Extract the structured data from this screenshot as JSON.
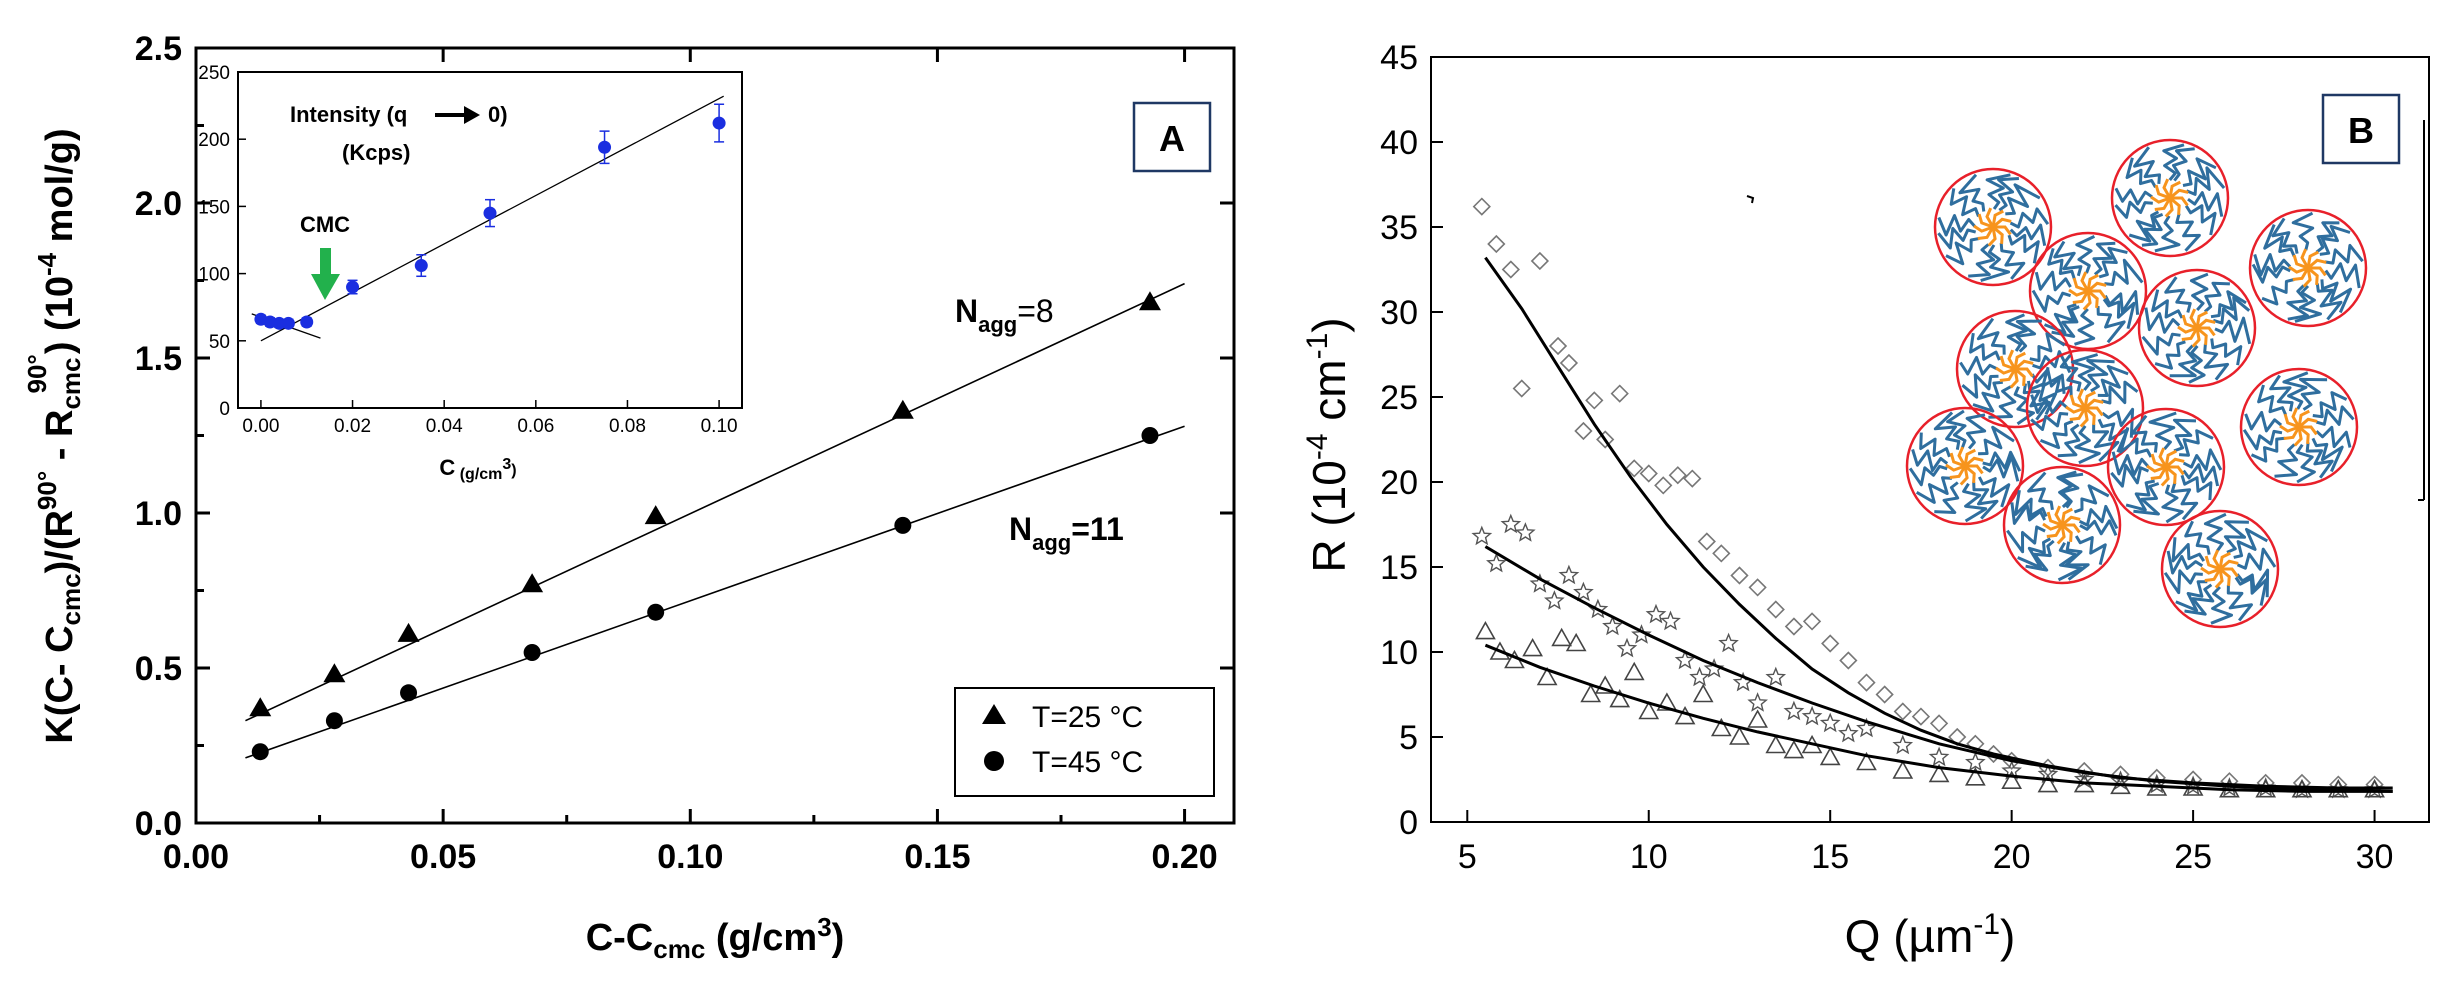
{
  "panel_a": {
    "label": "A",
    "ylabel_parts": [
      "K(C- C",
      "cmc",
      ")/(R",
      "90°",
      " - R",
      "cmc",
      "90°",
      ") (10",
      "-4",
      " mol/g)"
    ],
    "xlabel_parts": [
      "C-C",
      "cmc",
      " (g/cm",
      "3",
      ")"
    ],
    "annotation_top": {
      "main": "N",
      "sub": "agg",
      "value": "=8"
    },
    "annotation_bottom": {
      "main": "N",
      "sub": "agg",
      "value": "=11"
    },
    "legend": [
      {
        "marker": "triangle",
        "label": "T=25 °C"
      },
      {
        "marker": "circle",
        "label": "T=45 °C"
      }
    ],
    "inset": {
      "title_line1": "Intensity (q",
      "title_arrow_target": "0)",
      "title_line2": "(Kcps)",
      "xlabel_parts": [
        "C",
        " (g/cm",
        "3",
        ")"
      ],
      "cmc_label": "CMC",
      "point_color": "#1a2ee0",
      "arrow_color": "#22b14c"
    }
  },
  "panel_b": {
    "label": "B",
    "ylabel_parts": [
      "R (10",
      "-4",
      " cm",
      "-1",
      ")"
    ],
    "xlabel_parts": [
      "Q (µm",
      "-1",
      ")"
    ],
    "micelle_colors": {
      "circle": "#e8202a",
      "corona": "#2f6e9e",
      "core": "#f7941d"
    }
  },
  "chart_data": [
    {
      "type": "scatter",
      "title": "",
      "xlabel": "C-Ccmc (g/cm3)",
      "ylabel": "K(C- Ccmc)/(R90° - Rcmc90°) (10-4 mol/g)",
      "xlim": [
        0.0,
        0.21
      ],
      "ylim": [
        0.0,
        2.5
      ],
      "xticks": [
        0.0,
        0.05,
        0.1,
        0.15,
        0.2
      ],
      "xtick_labels": [
        "0.00",
        "0.05",
        "0.10",
        "0.15",
        "0.20"
      ],
      "yticks": [
        0.0,
        0.5,
        1.0,
        1.5,
        2.0,
        2.5
      ],
      "ytick_labels": [
        "0.0",
        "0.5",
        "1.0",
        "1.5",
        "2.0",
        "2.5"
      ],
      "series": [
        {
          "name": "T=25 °C",
          "marker": "triangle",
          "x": [
            0.013,
            0.028,
            0.043,
            0.068,
            0.093,
            0.143,
            0.193
          ],
          "y": [
            0.37,
            0.48,
            0.61,
            0.77,
            0.99,
            1.33,
            1.68
          ],
          "fit": {
            "x": [
              0.01,
              0.2
            ],
            "y": [
              0.33,
              1.74
            ]
          }
        },
        {
          "name": "T=45 °C",
          "marker": "circle",
          "x": [
            0.013,
            0.028,
            0.043,
            0.068,
            0.093,
            0.143,
            0.193
          ],
          "y": [
            0.23,
            0.33,
            0.42,
            0.55,
            0.68,
            0.96,
            1.25
          ],
          "fit": {
            "x": [
              0.01,
              0.2
            ],
            "y": [
              0.21,
              1.28
            ]
          }
        }
      ]
    },
    {
      "type": "scatter",
      "title": "Intensity (q → 0) (Kcps)",
      "xlabel": "C (g/cm3)",
      "ylabel": "",
      "xlim": [
        -0.005,
        0.105
      ],
      "ylim": [
        0,
        250
      ],
      "xticks": [
        0.0,
        0.02,
        0.04,
        0.06,
        0.08,
        0.1
      ],
      "xtick_labels": [
        "0.00",
        "0.02",
        "0.04",
        "0.06",
        "0.08",
        "0.10"
      ],
      "yticks": [
        0,
        50,
        100,
        150,
        200,
        250
      ],
      "ytick_labels": [
        "0",
        "50",
        "100",
        "150",
        "200",
        "250"
      ],
      "series": [
        {
          "name": "Intensity",
          "x": [
            0.0,
            0.002,
            0.004,
            0.006,
            0.01,
            0.02,
            0.035,
            0.05,
            0.075,
            0.1
          ],
          "y": [
            66,
            64,
            63,
            63,
            64,
            90,
            106,
            145,
            194,
            212
          ],
          "err": [
            3,
            3,
            3,
            3,
            3,
            5,
            8,
            10,
            12,
            14
          ]
        }
      ],
      "fits": [
        {
          "x": [
            -0.002,
            0.013
          ],
          "y": [
            70,
            52
          ]
        },
        {
          "x": [
            0.0,
            0.101
          ],
          "y": [
            50,
            232
          ]
        }
      ]
    },
    {
      "type": "scatter",
      "title": "",
      "xlabel": "Q (µm-1)",
      "ylabel": "R (10-4 cm-1)",
      "xlim": [
        4,
        31.5
      ],
      "ylim": [
        0,
        45
      ],
      "xticks": [
        5,
        10,
        15,
        20,
        25,
        30
      ],
      "xtick_labels": [
        "5",
        "10",
        "15",
        "20",
        "25",
        "30"
      ],
      "yticks": [
        0,
        5,
        10,
        15,
        20,
        25,
        30,
        35,
        40,
        45
      ],
      "ytick_labels": [
        "0",
        "5",
        "10",
        "15",
        "20",
        "25",
        "30",
        "35",
        "40",
        "45"
      ],
      "series": [
        {
          "name": "diamonds",
          "marker": "diamond",
          "x": [
            5.4,
            5.8,
            6.2,
            6.5,
            7.0,
            7.5,
            7.8,
            8.2,
            8.5,
            8.8,
            9.2,
            9.6,
            10.0,
            10.4,
            10.8,
            11.2,
            11.6,
            12.0,
            12.5,
            13.0,
            13.5,
            14.0,
            14.5,
            15.0,
            15.5,
            16.0,
            16.5,
            17.0,
            17.5,
            18.0,
            18.5,
            19.0,
            19.5,
            20.0,
            21.0,
            22.0,
            23.0,
            24.0,
            25.0,
            26.0,
            27.0,
            28.0,
            29.0,
            30.0
          ],
          "y": [
            36.2,
            34.0,
            32.5,
            25.5,
            33.0,
            28.0,
            27.0,
            23.0,
            24.8,
            22.5,
            25.2,
            20.8,
            20.5,
            19.8,
            20.4,
            20.2,
            16.5,
            15.8,
            14.5,
            13.8,
            12.5,
            11.5,
            11.8,
            10.5,
            9.5,
            8.2,
            7.5,
            6.5,
            6.2,
            5.8,
            5.0,
            4.6,
            4.0,
            3.6,
            3.2,
            3.0,
            2.8,
            2.6,
            2.5,
            2.4,
            2.3,
            2.3,
            2.2,
            2.2
          ],
          "fit_x": [
            5.5,
            6.5,
            7.5,
            8.5,
            9.5,
            10.5,
            11.5,
            12.5,
            13.5,
            14.5,
            15.5,
            16.5,
            17.5,
            18.5,
            19.5,
            21,
            23,
            25,
            27,
            29,
            30.5
          ],
          "fit_y": [
            33.2,
            30.2,
            26.8,
            23.4,
            20.3,
            17.5,
            15.0,
            12.8,
            10.8,
            9.0,
            7.6,
            6.4,
            5.4,
            4.6,
            4.0,
            3.3,
            2.6,
            2.3,
            2.1,
            2.0,
            2.0
          ]
        },
        {
          "name": "stars",
          "marker": "star",
          "x": [
            5.4,
            5.8,
            6.2,
            6.6,
            7.0,
            7.4,
            7.8,
            8.2,
            8.6,
            9.0,
            9.4,
            9.8,
            10.2,
            10.6,
            11.0,
            11.4,
            11.8,
            12.2,
            12.6,
            13.0,
            13.5,
            14.0,
            14.5,
            15.0,
            15.5,
            16.0,
            17.0,
            18.0,
            19.0,
            20.0,
            21.0,
            22.0,
            23.0,
            24.0,
            25.0,
            26.0,
            27.0,
            28.0,
            29.0,
            30.0
          ],
          "y": [
            16.8,
            15.2,
            17.5,
            17.0,
            14.0,
            13.0,
            14.5,
            13.5,
            12.5,
            11.5,
            10.2,
            11.0,
            12.2,
            11.8,
            9.5,
            8.5,
            9.0,
            10.5,
            8.2,
            7.0,
            8.5,
            6.5,
            6.2,
            5.8,
            5.2,
            5.5,
            4.5,
            3.8,
            3.5,
            3.0,
            2.8,
            2.5,
            2.4,
            2.2,
            2.1,
            2.0,
            2.0,
            1.9,
            1.9,
            1.9
          ],
          "fit_x": [
            5.5,
            7,
            8.5,
            10,
            11.5,
            13,
            14.5,
            16,
            18,
            20,
            22,
            24,
            26,
            28,
            30.5
          ],
          "fit_y": [
            16.2,
            14.3,
            12.6,
            11.0,
            9.5,
            8.2,
            7.0,
            5.9,
            4.6,
            3.6,
            2.9,
            2.4,
            2.1,
            1.9,
            1.8
          ]
        },
        {
          "name": "triangles",
          "marker": "triangle-open",
          "x": [
            5.5,
            5.9,
            6.3,
            6.8,
            7.2,
            7.6,
            8.0,
            8.4,
            8.8,
            9.2,
            9.6,
            10.0,
            10.5,
            11.0,
            11.5,
            12.0,
            12.5,
            13.0,
            13.5,
            14.0,
            14.5,
            15.0,
            16.0,
            17.0,
            18.0,
            19.0,
            20.0,
            21.0,
            22.0,
            23.0,
            24.0,
            25.0,
            26.0,
            27.0,
            28.0,
            29.0,
            30.0
          ],
          "y": [
            11.2,
            10.0,
            9.5,
            10.2,
            8.5,
            10.8,
            10.5,
            7.5,
            8.0,
            7.2,
            8.8,
            6.5,
            7.0,
            6.2,
            7.5,
            5.5,
            5.0,
            6.0,
            4.5,
            4.2,
            4.5,
            3.8,
            3.5,
            3.0,
            2.8,
            2.6,
            2.4,
            2.2,
            2.2,
            2.1,
            2.0,
            2.0,
            1.9,
            1.9,
            1.9,
            1.9,
            1.9
          ],
          "fit_x": [
            5.5,
            7,
            8.5,
            10,
            11.5,
            13,
            14.5,
            16,
            18,
            20,
            22,
            24,
            26,
            28,
            30.5
          ],
          "fit_y": [
            10.4,
            9.1,
            8.0,
            7.0,
            6.1,
            5.3,
            4.6,
            3.9,
            3.2,
            2.7,
            2.3,
            2.1,
            1.9,
            1.8,
            1.8
          ]
        }
      ]
    }
  ]
}
